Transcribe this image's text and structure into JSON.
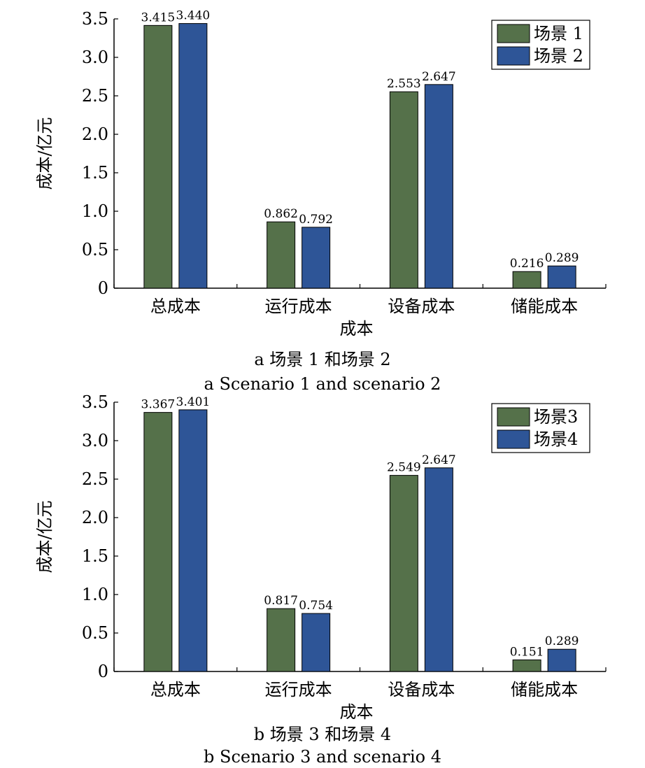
{
  "chart_data": [
    {
      "type": "bar",
      "xlabel": "成本",
      "ylabel": "成本/亿元",
      "ylim": [
        0,
        3.5
      ],
      "yticks": [
        "0",
        "0.5",
        "1.0",
        "1.5",
        "2.0",
        "2.5",
        "3.0",
        "3.5"
      ],
      "categories": [
        "总成本",
        "运行成本",
        "设备成本",
        "储能成本"
      ],
      "series": [
        {
          "name": "场景 1",
          "color": "#55714a",
          "values": [
            3.415,
            0.862,
            2.553,
            0.216
          ]
        },
        {
          "name": "场景 2",
          "color": "#2e5597",
          "values": [
            3.44,
            0.792,
            2.647,
            0.289
          ]
        }
      ],
      "legend_position": "top-right",
      "grid": false,
      "caption_cn": "a 场景 1 和场景 2",
      "caption_en": "a Scenario 1 and scenario 2"
    },
    {
      "type": "bar",
      "xlabel": "成本",
      "ylabel": "成本/亿元",
      "ylim": [
        0,
        3.5
      ],
      "yticks": [
        "0",
        "0.5",
        "1.0",
        "1.5",
        "2.0",
        "2.5",
        "3.0",
        "3.5"
      ],
      "categories": [
        "总成本",
        "运行成本",
        "设备成本",
        "储能成本"
      ],
      "series": [
        {
          "name": "场景3",
          "color": "#55714a",
          "values": [
            3.367,
            0.817,
            2.549,
            0.151
          ]
        },
        {
          "name": "场景4",
          "color": "#2e5597",
          "values": [
            3.401,
            0.754,
            2.647,
            0.289
          ]
        }
      ],
      "legend_position": "top-right",
      "grid": false,
      "caption_cn": "b 场景 3 和场景 4",
      "caption_en": "b Scenario 3 and scenario 4"
    }
  ]
}
